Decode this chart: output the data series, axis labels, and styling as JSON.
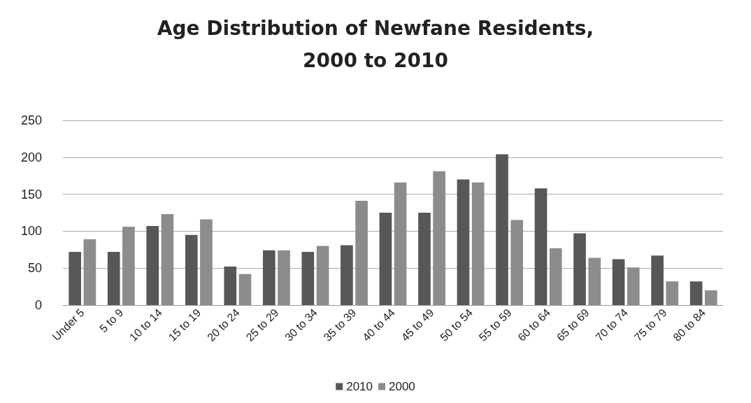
{
  "chart_data": {
    "type": "bar",
    "title": "Age Distribution of Newfane Residents,\n2000 to 2010",
    "categories": [
      "Under 5",
      "5 to 9",
      "10 to 14",
      "15 to 19",
      "20 to 24",
      "25 to 29",
      "30 to 34",
      "35 to 39",
      "40 to 44",
      "45 to 49",
      "50 to 54",
      "55 to 59",
      "60 to 64",
      "65 to 69",
      "70 to 74",
      "75 to 79",
      "80 to 84"
    ],
    "series": [
      {
        "name": "2010",
        "color": "#575757",
        "values": [
          72,
          72,
          107,
          95,
          52,
          74,
          72,
          81,
          125,
          125,
          170,
          204,
          158,
          97,
          62,
          67,
          32
        ]
      },
      {
        "name": "2000",
        "color": "#8c8c8c",
        "values": [
          89,
          106,
          123,
          116,
          42,
          74,
          80,
          141,
          166,
          181,
          166,
          115,
          77,
          64,
          51,
          32,
          20
        ]
      }
    ],
    "ylim": [
      0,
      250
    ],
    "yticks": [
      0,
      50,
      100,
      150,
      200,
      250
    ],
    "grid": "y",
    "legend": "bottom"
  }
}
